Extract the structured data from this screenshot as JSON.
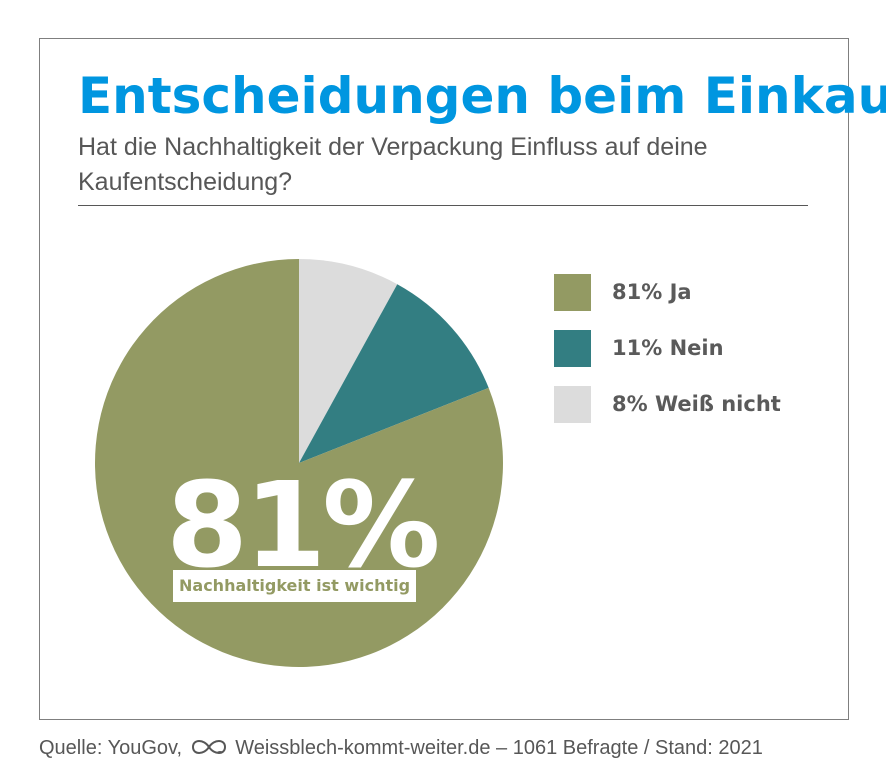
{
  "header": {
    "title": "Entscheidungen beim Einkauf",
    "subtitle": "Hat die Nachhaltigkeit der Verpackung Einfluss auf deine Kaufentscheidung?"
  },
  "chart_data": {
    "type": "pie",
    "title": "Entscheidungen beim Einkauf",
    "subtitle": "Hat die Nachhaltigkeit der Verpackung Einfluss auf deine Kaufentscheidung?",
    "slices": [
      {
        "label": "81% Ja",
        "value": 81,
        "color": "#939a63"
      },
      {
        "label": "11% Nein",
        "value": 11,
        "color": "#337e82"
      },
      {
        "label": "8% Weiß nicht",
        "value": 8,
        "color": "#dcdcdc"
      }
    ],
    "legend_position": "right",
    "callout": {
      "value": "81%",
      "label": "Nachhaltigkeit ist wichtig"
    }
  },
  "footer": {
    "source_prefix": "Quelle: YouGov,",
    "logo_icon": "infinity-leaf-icon",
    "source_rest": "Weissblech-kommt-weiter.de – 1061 Befragte / Stand: 2021"
  }
}
